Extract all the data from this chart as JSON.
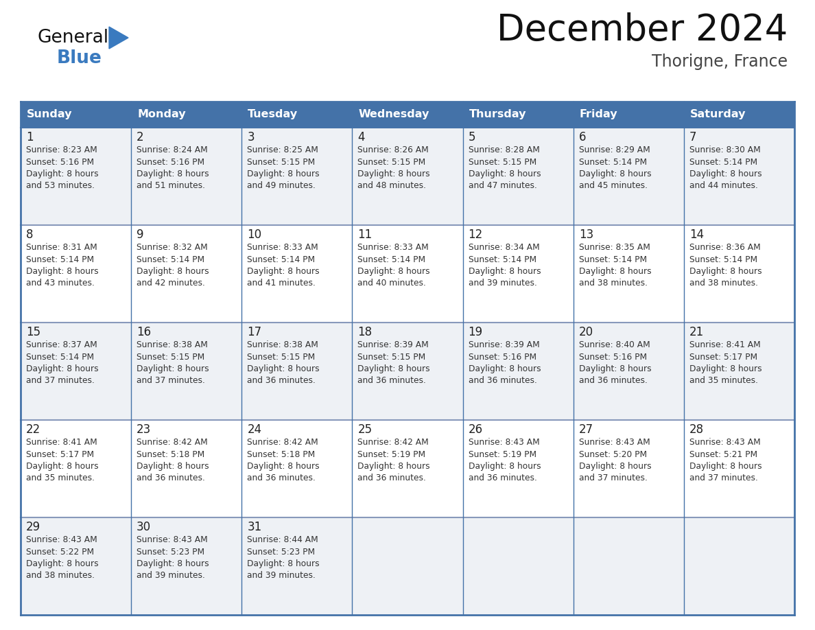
{
  "title": "December 2024",
  "subtitle": "Thorigne, France",
  "days_of_week": [
    "Sunday",
    "Monday",
    "Tuesday",
    "Wednesday",
    "Thursday",
    "Friday",
    "Saturday"
  ],
  "header_bg": "#4472a8",
  "header_text": "#ffffff",
  "cell_bg_light": "#eef1f5",
  "cell_bg_white": "#ffffff",
  "border_color": "#4472a8",
  "row_line_color": "#8899bb",
  "day_num_color": "#222222",
  "info_color": "#333333",
  "logo_general_color": "#111111",
  "logo_blue_color": "#3a7abf",
  "calendar_data": [
    [
      {
        "day": 1,
        "sunrise": "8:23 AM",
        "sunset": "5:16 PM",
        "daylight_hrs": 8,
        "daylight_min": "53 minutes."
      },
      {
        "day": 2,
        "sunrise": "8:24 AM",
        "sunset": "5:16 PM",
        "daylight_hrs": 8,
        "daylight_min": "51 minutes."
      },
      {
        "day": 3,
        "sunrise": "8:25 AM",
        "sunset": "5:15 PM",
        "daylight_hrs": 8,
        "daylight_min": "49 minutes."
      },
      {
        "day": 4,
        "sunrise": "8:26 AM",
        "sunset": "5:15 PM",
        "daylight_hrs": 8,
        "daylight_min": "48 minutes."
      },
      {
        "day": 5,
        "sunrise": "8:28 AM",
        "sunset": "5:15 PM",
        "daylight_hrs": 8,
        "daylight_min": "47 minutes."
      },
      {
        "day": 6,
        "sunrise": "8:29 AM",
        "sunset": "5:14 PM",
        "daylight_hrs": 8,
        "daylight_min": "45 minutes."
      },
      {
        "day": 7,
        "sunrise": "8:30 AM",
        "sunset": "5:14 PM",
        "daylight_hrs": 8,
        "daylight_min": "44 minutes."
      }
    ],
    [
      {
        "day": 8,
        "sunrise": "8:31 AM",
        "sunset": "5:14 PM",
        "daylight_hrs": 8,
        "daylight_min": "43 minutes."
      },
      {
        "day": 9,
        "sunrise": "8:32 AM",
        "sunset": "5:14 PM",
        "daylight_hrs": 8,
        "daylight_min": "42 minutes."
      },
      {
        "day": 10,
        "sunrise": "8:33 AM",
        "sunset": "5:14 PM",
        "daylight_hrs": 8,
        "daylight_min": "41 minutes."
      },
      {
        "day": 11,
        "sunrise": "8:33 AM",
        "sunset": "5:14 PM",
        "daylight_hrs": 8,
        "daylight_min": "40 minutes."
      },
      {
        "day": 12,
        "sunrise": "8:34 AM",
        "sunset": "5:14 PM",
        "daylight_hrs": 8,
        "daylight_min": "39 minutes."
      },
      {
        "day": 13,
        "sunrise": "8:35 AM",
        "sunset": "5:14 PM",
        "daylight_hrs": 8,
        "daylight_min": "38 minutes."
      },
      {
        "day": 14,
        "sunrise": "8:36 AM",
        "sunset": "5:14 PM",
        "daylight_hrs": 8,
        "daylight_min": "38 minutes."
      }
    ],
    [
      {
        "day": 15,
        "sunrise": "8:37 AM",
        "sunset": "5:14 PM",
        "daylight_hrs": 8,
        "daylight_min": "37 minutes."
      },
      {
        "day": 16,
        "sunrise": "8:38 AM",
        "sunset": "5:15 PM",
        "daylight_hrs": 8,
        "daylight_min": "37 minutes."
      },
      {
        "day": 17,
        "sunrise": "8:38 AM",
        "sunset": "5:15 PM",
        "daylight_hrs": 8,
        "daylight_min": "36 minutes."
      },
      {
        "day": 18,
        "sunrise": "8:39 AM",
        "sunset": "5:15 PM",
        "daylight_hrs": 8,
        "daylight_min": "36 minutes."
      },
      {
        "day": 19,
        "sunrise": "8:39 AM",
        "sunset": "5:16 PM",
        "daylight_hrs": 8,
        "daylight_min": "36 minutes."
      },
      {
        "day": 20,
        "sunrise": "8:40 AM",
        "sunset": "5:16 PM",
        "daylight_hrs": 8,
        "daylight_min": "36 minutes."
      },
      {
        "day": 21,
        "sunrise": "8:41 AM",
        "sunset": "5:17 PM",
        "daylight_hrs": 8,
        "daylight_min": "35 minutes."
      }
    ],
    [
      {
        "day": 22,
        "sunrise": "8:41 AM",
        "sunset": "5:17 PM",
        "daylight_hrs": 8,
        "daylight_min": "35 minutes."
      },
      {
        "day": 23,
        "sunrise": "8:42 AM",
        "sunset": "5:18 PM",
        "daylight_hrs": 8,
        "daylight_min": "36 minutes."
      },
      {
        "day": 24,
        "sunrise": "8:42 AM",
        "sunset": "5:18 PM",
        "daylight_hrs": 8,
        "daylight_min": "36 minutes."
      },
      {
        "day": 25,
        "sunrise": "8:42 AM",
        "sunset": "5:19 PM",
        "daylight_hrs": 8,
        "daylight_min": "36 minutes."
      },
      {
        "day": 26,
        "sunrise": "8:43 AM",
        "sunset": "5:19 PM",
        "daylight_hrs": 8,
        "daylight_min": "36 minutes."
      },
      {
        "day": 27,
        "sunrise": "8:43 AM",
        "sunset": "5:20 PM",
        "daylight_hrs": 8,
        "daylight_min": "37 minutes."
      },
      {
        "day": 28,
        "sunrise": "8:43 AM",
        "sunset": "5:21 PM",
        "daylight_hrs": 8,
        "daylight_min": "37 minutes."
      }
    ],
    [
      {
        "day": 29,
        "sunrise": "8:43 AM",
        "sunset": "5:22 PM",
        "daylight_hrs": 8,
        "daylight_min": "38 minutes."
      },
      {
        "day": 30,
        "sunrise": "8:43 AM",
        "sunset": "5:23 PM",
        "daylight_hrs": 8,
        "daylight_min": "39 minutes."
      },
      {
        "day": 31,
        "sunrise": "8:44 AM",
        "sunset": "5:23 PM",
        "daylight_hrs": 8,
        "daylight_min": "39 minutes."
      },
      null,
      null,
      null,
      null
    ]
  ]
}
